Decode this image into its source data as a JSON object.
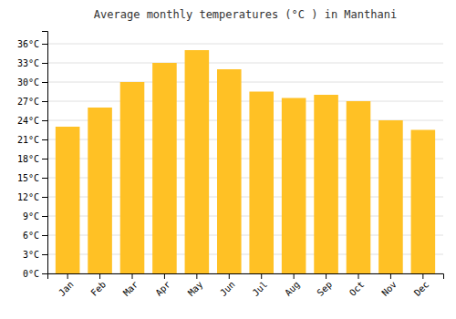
{
  "chart_data": {
    "type": "bar",
    "title": "Average monthly temperatures (°C ) in Manthani",
    "categories": [
      "Jan",
      "Feb",
      "Mar",
      "Apr",
      "May",
      "Jun",
      "Jul",
      "Aug",
      "Sep",
      "Oct",
      "Nov",
      "Dec"
    ],
    "values": [
      23.0,
      26.0,
      30.0,
      33.0,
      35.0,
      32.0,
      28.5,
      27.5,
      28.0,
      27.0,
      24.0,
      22.5
    ],
    "color": "#FFC125",
    "ylim": [
      0,
      38
    ],
    "yticks": [
      {
        "value": 0,
        "label": "0°C"
      },
      {
        "value": 3,
        "label": "3°C"
      },
      {
        "value": 6,
        "label": "6°C"
      },
      {
        "value": 9,
        "label": "9°C"
      },
      {
        "value": 12,
        "label": "12°C"
      },
      {
        "value": 15,
        "label": "15°C"
      },
      {
        "value": 18,
        "label": "18°C"
      },
      {
        "value": 21,
        "label": "21°C"
      },
      {
        "value": 24,
        "label": "24°C"
      },
      {
        "value": 27,
        "label": "27°C"
      },
      {
        "value": 30,
        "label": "30°C"
      },
      {
        "value": 33,
        "label": "33°C"
      },
      {
        "value": 36,
        "label": "36°C"
      }
    ],
    "grid": true
  }
}
